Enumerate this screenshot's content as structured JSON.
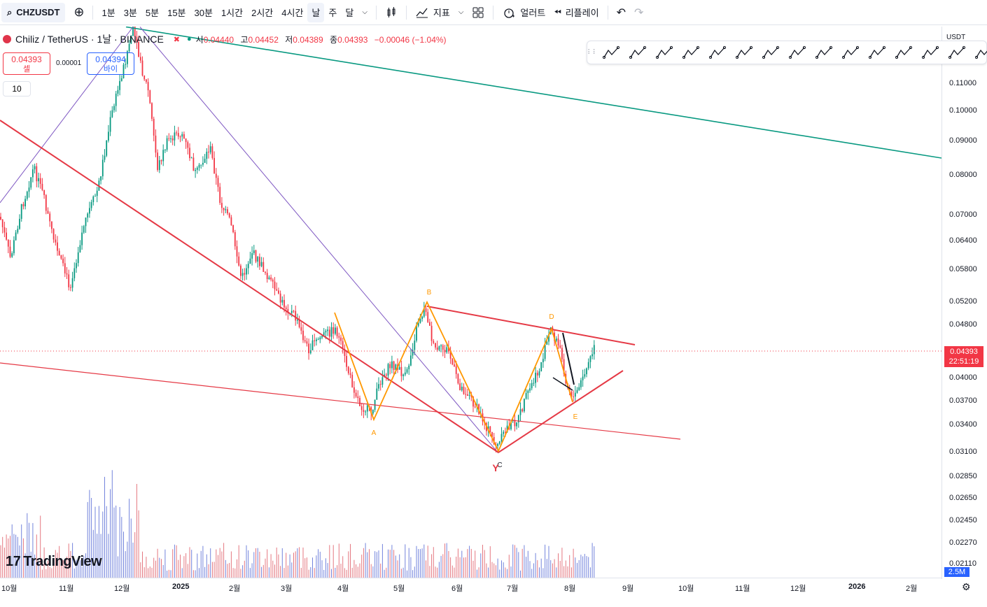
{
  "toolbar": {
    "symbol": "CHZUSDT",
    "intervals": [
      "1분",
      "3분",
      "5분",
      "15분",
      "30분",
      "1시간",
      "2시간",
      "4시간",
      "날",
      "주",
      "달"
    ],
    "active_interval": "날",
    "indicators_label": "지표",
    "alert_label": "얼러트",
    "replay_label": "리플레이"
  },
  "legend": {
    "title": "Chiliz / TetherUS · 1날 · BINANCE",
    "open_key": "시",
    "open": "0.04440",
    "high_key": "고",
    "high": "0.04452",
    "low_key": "저",
    "low": "0.04389",
    "close_key": "종",
    "close": "0.04393",
    "change": "−0.00046 (−1.04%)"
  },
  "trade": {
    "sell_price": "0.04393",
    "sell_label": "셀",
    "spread": "0.00001",
    "buy_price": "0.04394",
    "buy_label": "바이",
    "quantity": "10"
  },
  "price_axis": {
    "currency": "USDT",
    "labels": [
      "0.11000",
      "0.10000",
      "0.09000",
      "0.08000",
      "0.07000",
      "0.06400",
      "0.05800",
      "0.05200",
      "0.04800",
      "0.04000",
      "0.03700",
      "0.03400",
      "0.03100",
      "0.02850",
      "0.02650",
      "0.02450",
      "0.02270",
      "0.02110"
    ],
    "last_price": "0.04393",
    "countdown": "22:51:19",
    "volume_label": "2.5M"
  },
  "time_axis": {
    "labels": [
      "10월",
      "11월",
      "12월",
      "2025",
      "2월",
      "3월",
      "4월",
      "5월",
      "6월",
      "7월",
      "8월",
      "9월",
      "10월",
      "11월",
      "12월",
      "2026",
      "2월"
    ]
  },
  "pattern_labels": [
    "A",
    "B",
    "C",
    "D",
    "E",
    "Y"
  ],
  "brand": "TradingView",
  "colors": {
    "up": "#089981",
    "down": "#f23645",
    "orange_pattern": "#ff9800",
    "purple_line": "#7e57c2",
    "teal_line": "#089981",
    "accent": "#2962ff"
  }
}
